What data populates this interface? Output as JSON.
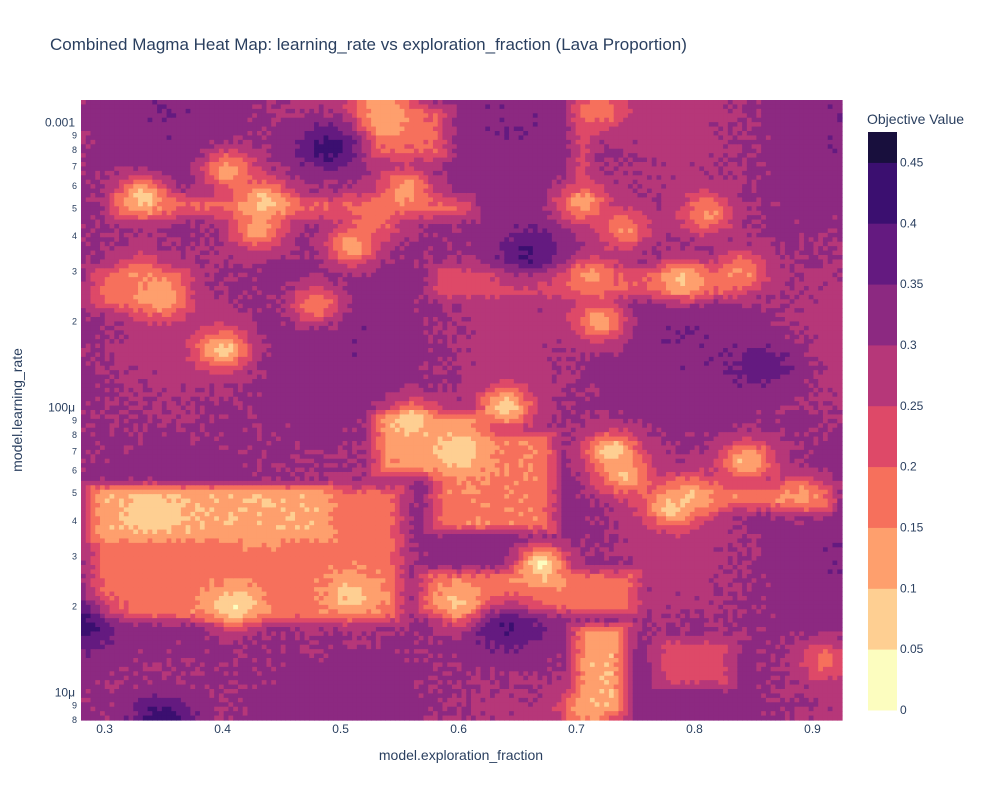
{
  "chart_data": {
    "type": "heatmap",
    "title": "Combined Magma Heat Map: learning_rate vs exploration_fraction (Lava Proportion)",
    "xlabel": "model.exploration_fraction",
    "ylabel": "model.learning_rate",
    "x_range": [
      0.28,
      0.925
    ],
    "y_range": [
      8e-06,
      0.0012
    ],
    "y_log": true,
    "x_ticks": [
      "0.3",
      "0.4",
      "0.5",
      "0.6",
      "0.7",
      "0.8",
      "0.9"
    ],
    "y_major_ticks": [
      "0.001",
      "100μ",
      "10μ"
    ],
    "y_minor_ticks": [
      "9",
      "8",
      "7",
      "6",
      "5",
      "4",
      "3",
      "2"
    ],
    "colorbar": {
      "title": "Objective Value",
      "ticks": [
        "0",
        "0.05",
        "0.1",
        "0.15",
        "0.2",
        "0.25",
        "0.3",
        "0.35",
        "0.4",
        "0.45"
      ],
      "range": [
        0,
        0.475
      ],
      "level_step": 0.05
    },
    "colorscale": [
      "#fcfdbf",
      "#fecf92",
      "#fe9f6d",
      "#f6705c",
      "#de4968",
      "#b63779",
      "#8c2981",
      "#641a80",
      "#3b0f70",
      "#180f3d",
      "#000004"
    ],
    "base_value": 0.31,
    "hotspots": [
      {
        "x": 0.535,
        "y": 0.001,
        "v": 0.1
      },
      {
        "x": 0.535,
        "y": 0.00118,
        "v": 0.12
      },
      {
        "x": 0.72,
        "y": 0.0011,
        "v": 0.16
      },
      {
        "x": 0.332,
        "y": 0.00055,
        "v": 0.08
      },
      {
        "x": 0.405,
        "y": 0.00068,
        "v": 0.12
      },
      {
        "x": 0.436,
        "y": 0.00053,
        "v": 0.08
      },
      {
        "x": 0.43,
        "y": 0.00042,
        "v": 0.12
      },
      {
        "x": 0.555,
        "y": 0.00058,
        "v": 0.12
      },
      {
        "x": 0.53,
        "y": 0.00046,
        "v": 0.18
      },
      {
        "x": 0.51,
        "y": 0.00037,
        "v": 0.12
      },
      {
        "x": 0.705,
        "y": 0.00052,
        "v": 0.12
      },
      {
        "x": 0.74,
        "y": 0.00042,
        "v": 0.15
      },
      {
        "x": 0.81,
        "y": 0.00048,
        "v": 0.14
      },
      {
        "x": 0.33,
        "y": 0.00029,
        "v": 0.16
      },
      {
        "x": 0.345,
        "y": 0.00024,
        "v": 0.12
      },
      {
        "x": 0.48,
        "y": 0.00023,
        "v": 0.16
      },
      {
        "x": 0.71,
        "y": 0.00029,
        "v": 0.14
      },
      {
        "x": 0.79,
        "y": 0.00028,
        "v": 0.1
      },
      {
        "x": 0.84,
        "y": 0.0003,
        "v": 0.14
      },
      {
        "x": 0.72,
        "y": 0.0002,
        "v": 0.12
      },
      {
        "x": 0.4,
        "y": 0.00016,
        "v": 0.08
      },
      {
        "x": 0.56,
        "y": 9e-05,
        "v": 0.08
      },
      {
        "x": 0.6,
        "y": 7e-05,
        "v": 0.06
      },
      {
        "x": 0.64,
        "y": 0.0001,
        "v": 0.07
      },
      {
        "x": 0.73,
        "y": 7e-05,
        "v": 0.07
      },
      {
        "x": 0.78,
        "y": 4.5e-05,
        "v": 0.08
      },
      {
        "x": 0.74,
        "y": 5.8e-05,
        "v": 0.1
      },
      {
        "x": 0.845,
        "y": 6.5e-05,
        "v": 0.09
      },
      {
        "x": 0.34,
        "y": 4.3e-05,
        "v": 0.06
      },
      {
        "x": 0.43,
        "y": 3.7e-05,
        "v": 0.12
      },
      {
        "x": 0.41,
        "y": 2e-05,
        "v": 0.05
      },
      {
        "x": 0.51,
        "y": 2.2e-05,
        "v": 0.08
      },
      {
        "x": 0.605,
        "y": 2e-05,
        "v": 0.06
      },
      {
        "x": 0.67,
        "y": 2.8e-05,
        "v": 0.05
      },
      {
        "x": 0.63,
        "y": 2e-05,
        "v": 0.14
      },
      {
        "x": 0.8,
        "y": 4.9e-05,
        "v": 0.1
      },
      {
        "x": 0.89,
        "y": 5e-05,
        "v": 0.14
      },
      {
        "x": 0.71,
        "y": 8.7e-06,
        "v": 0.12
      },
      {
        "x": 0.91,
        "y": 1.3e-05,
        "v": 0.18
      }
    ],
    "bands": [
      {
        "x0": 0.28,
        "x1": 0.56,
        "y0": 1.7e-05,
        "y1": 5.5e-05,
        "v": 0.17
      },
      {
        "x0": 0.28,
        "x1": 0.5,
        "y0": 3.3e-05,
        "y1": 5.5e-05,
        "v": 0.11
      },
      {
        "x0": 0.56,
        "x1": 0.76,
        "y0": 1.8e-05,
        "y1": 2.8e-05,
        "v": 0.17
      },
      {
        "x0": 0.52,
        "x1": 0.63,
        "y0": 5.5e-05,
        "y1": 0.0001,
        "v": 0.14
      },
      {
        "x0": 0.57,
        "x1": 0.69,
        "y0": 3.5e-05,
        "y1": 8.5e-05,
        "v": 0.16
      },
      {
        "x0": 0.69,
        "x1": 0.75,
        "y0": 8e-06,
        "y1": 1.8e-05,
        "v": 0.11
      },
      {
        "x0": 0.51,
        "x1": 0.6,
        "y0": 0.0007,
        "y1": 0.0012,
        "v": 0.2
      },
      {
        "x0": 0.69,
        "x1": 0.72,
        "y0": 0.0006,
        "y1": 0.0012,
        "v": 0.2
      },
      {
        "x0": 0.57,
        "x1": 0.85,
        "y0": 0.00023,
        "y1": 0.00033,
        "v": 0.22
      },
      {
        "x0": 0.28,
        "x1": 0.38,
        "y0": 0.00021,
        "y1": 0.00032,
        "v": 0.19
      },
      {
        "x0": 0.3,
        "x1": 0.62,
        "y0": 0.00044,
        "y1": 0.00058,
        "v": 0.21
      },
      {
        "x0": 0.81,
        "x1": 0.925,
        "y0": 4.2e-05,
        "y1": 5.5e-05,
        "v": 0.17
      },
      {
        "x0": 0.76,
        "x1": 0.84,
        "y0": 1e-05,
        "y1": 1.6e-05,
        "v": 0.22
      }
    ],
    "dark_spots": [
      {
        "x": 0.35,
        "y": 8e-06,
        "v": 0.43
      },
      {
        "x": 0.28,
        "y": 1.7e-05,
        "v": 0.42
      },
      {
        "x": 0.49,
        "y": 0.00082,
        "v": 0.42
      },
      {
        "x": 0.66,
        "y": 0.00035,
        "v": 0.4
      },
      {
        "x": 0.64,
        "y": 1.7e-05,
        "v": 0.4
      },
      {
        "x": 0.86,
        "y": 0.00014,
        "v": 0.38
      }
    ]
  }
}
